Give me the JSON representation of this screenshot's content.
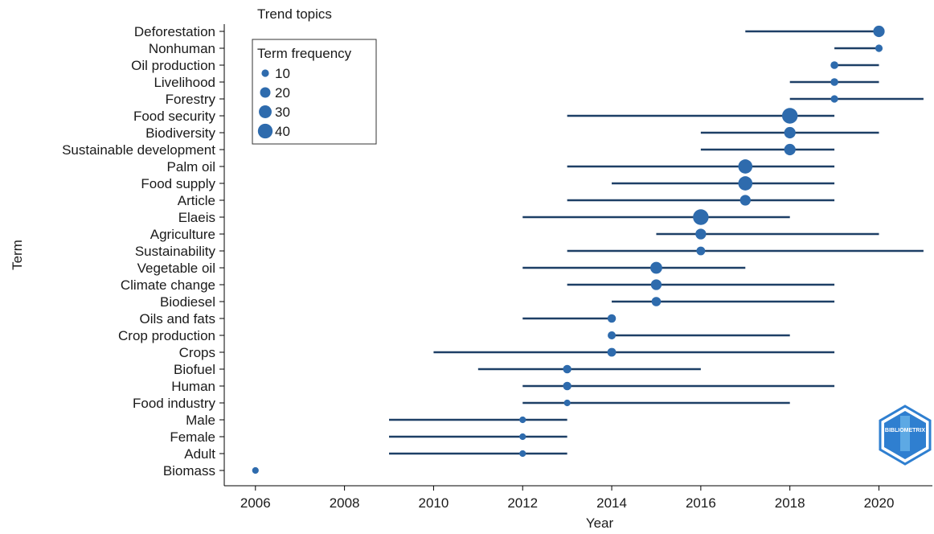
{
  "chart_data": {
    "type": "scatter",
    "title": "Trend topics",
    "xlabel": "Year",
    "ylabel": "Term",
    "xlim": [
      2005.3,
      2021.2
    ],
    "xticks": [
      2006,
      2008,
      2010,
      2012,
      2014,
      2016,
      2018,
      2020
    ],
    "grid": false,
    "legend": {
      "title": "Term frequency",
      "placement": "top-left",
      "sizes": [
        10,
        20,
        30,
        40
      ],
      "labels": [
        "10",
        "20",
        "30",
        "40"
      ]
    },
    "colors": {
      "point": "#2e6bad",
      "line": "#1d3f66",
      "logo": "#2f7fd0"
    },
    "terms": [
      {
        "term": "Deforestation",
        "start": 2017,
        "median": 2020,
        "end": 2020,
        "freq": 24
      },
      {
        "term": "Nonhuman",
        "start": 2019,
        "median": 2020,
        "end": 2020,
        "freq": 10
      },
      {
        "term": "Oil production",
        "start": 2019,
        "median": 2019,
        "end": 2020,
        "freq": 11
      },
      {
        "term": "Livelihood",
        "start": 2018,
        "median": 2019,
        "end": 2020,
        "freq": 11
      },
      {
        "term": "Forestry",
        "start": 2018,
        "median": 2019,
        "end": 2021,
        "freq": 10
      },
      {
        "term": "Food security",
        "start": 2013,
        "median": 2018,
        "end": 2019,
        "freq": 45
      },
      {
        "term": "Biodiversity",
        "start": 2016,
        "median": 2018,
        "end": 2020,
        "freq": 24
      },
      {
        "term": "Sustainable development",
        "start": 2016,
        "median": 2018,
        "end": 2019,
        "freq": 24
      },
      {
        "term": "Palm oil",
        "start": 2013,
        "median": 2017,
        "end": 2019,
        "freq": 37
      },
      {
        "term": "Food supply",
        "start": 2014,
        "median": 2017,
        "end": 2019,
        "freq": 37
      },
      {
        "term": "Article",
        "start": 2013,
        "median": 2017,
        "end": 2019,
        "freq": 21
      },
      {
        "term": "Elaeis",
        "start": 2012,
        "median": 2016,
        "end": 2018,
        "freq": 45
      },
      {
        "term": "Agriculture",
        "start": 2015,
        "median": 2016,
        "end": 2020,
        "freq": 21
      },
      {
        "term": "Sustainability",
        "start": 2013,
        "median": 2016,
        "end": 2021,
        "freq": 14
      },
      {
        "term": "Vegetable oil",
        "start": 2012,
        "median": 2015,
        "end": 2017,
        "freq": 26
      },
      {
        "term": "Climate change",
        "start": 2013,
        "median": 2015,
        "end": 2019,
        "freq": 21
      },
      {
        "term": "Biodiesel",
        "start": 2014,
        "median": 2015,
        "end": 2019,
        "freq": 16
      },
      {
        "term": "Oils and fats",
        "start": 2012,
        "median": 2014,
        "end": 2014,
        "freq": 13
      },
      {
        "term": "Crop production",
        "start": 2014,
        "median": 2014,
        "end": 2018,
        "freq": 12
      },
      {
        "term": "Crops",
        "start": 2010,
        "median": 2014,
        "end": 2019,
        "freq": 14
      },
      {
        "term": "Biofuel",
        "start": 2011,
        "median": 2013,
        "end": 2016,
        "freq": 13
      },
      {
        "term": "Human",
        "start": 2012,
        "median": 2013,
        "end": 2019,
        "freq": 13
      },
      {
        "term": "Food industry",
        "start": 2012,
        "median": 2013,
        "end": 2018,
        "freq": 8
      },
      {
        "term": "Male",
        "start": 2009,
        "median": 2012,
        "end": 2013,
        "freq": 8
      },
      {
        "term": "Female",
        "start": 2009,
        "median": 2012,
        "end": 2013,
        "freq": 8
      },
      {
        "term": "Adult",
        "start": 2009,
        "median": 2012,
        "end": 2013,
        "freq": 8
      },
      {
        "term": "Biomass",
        "start": 2006,
        "median": 2006,
        "end": 2006,
        "freq": 8
      }
    ]
  },
  "logo": {
    "text": "BIBLIOMETRIX"
  }
}
